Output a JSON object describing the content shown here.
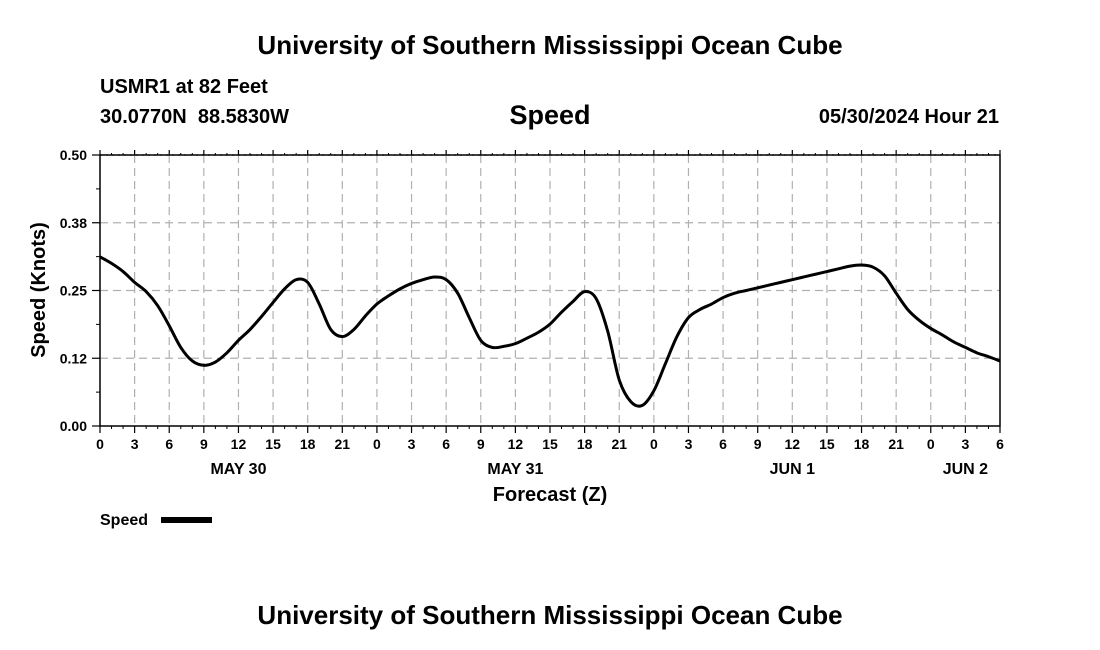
{
  "page": {
    "top_title": "University of Southern Mississippi Ocean Cube",
    "bottom_title": "University of Southern Mississippi Ocean Cube",
    "station_line": "USMR1 at 82 Feet",
    "coords_line": "30.0770N  88.5830W",
    "datetime_line": "05/30/2024 Hour 21"
  },
  "chart_data": {
    "type": "line",
    "title": "Speed",
    "xlabel": "Forecast (Z)",
    "ylabel": "Speed (Knots)",
    "ylim": [
      0,
      0.5
    ],
    "xlim": [
      0,
      78
    ],
    "y_ticks": [
      0,
      0.125,
      0.25,
      0.375,
      0.5
    ],
    "y_tick_labels": [
      "0.00",
      "0.12",
      "0.25",
      "0.38",
      "0.50"
    ],
    "x_ticks": [
      0,
      3,
      6,
      9,
      12,
      15,
      18,
      21,
      24,
      27,
      30,
      33,
      36,
      39,
      42,
      45,
      48,
      51,
      54,
      57,
      60,
      63,
      66,
      69,
      72,
      75,
      78
    ],
    "x_tick_labels": [
      "0",
      "3",
      "6",
      "9",
      "12",
      "15",
      "18",
      "21",
      "0",
      "3",
      "6",
      "9",
      "12",
      "15",
      "18",
      "21",
      "0",
      "3",
      "6",
      "9",
      "12",
      "15",
      "18",
      "21",
      "0",
      "3",
      "6"
    ],
    "date_labels": [
      {
        "label": "MAY 30",
        "x": 12
      },
      {
        "label": "MAY 31",
        "x": 36
      },
      {
        "label": "JUN 1",
        "x": 60
      },
      {
        "label": "JUN 2",
        "x": 75
      }
    ],
    "grid": true,
    "legend": "bottom-left",
    "series": [
      {
        "name": "Speed",
        "x": [
          0,
          1,
          2,
          3,
          4,
          5,
          6,
          7,
          8,
          9,
          10,
          11,
          12,
          13,
          14,
          15,
          16,
          17,
          18,
          19,
          20,
          21,
          22,
          23,
          24,
          25,
          26,
          27,
          28,
          29,
          30,
          31,
          32,
          33,
          34,
          35,
          36,
          37,
          38,
          39,
          40,
          41,
          42,
          43,
          44,
          45,
          46,
          47,
          48,
          49,
          50,
          51,
          52,
          53,
          54,
          55,
          56,
          57,
          58,
          59,
          60,
          61,
          62,
          63,
          64,
          65,
          66,
          67,
          68,
          69,
          70,
          71,
          72,
          73,
          74,
          75,
          76,
          77,
          78
        ],
        "values": [
          0.312,
          0.3,
          0.285,
          0.265,
          0.248,
          0.222,
          0.185,
          0.145,
          0.12,
          0.112,
          0.118,
          0.135,
          0.158,
          0.178,
          0.202,
          0.228,
          0.253,
          0.27,
          0.265,
          0.225,
          0.178,
          0.165,
          0.178,
          0.203,
          0.225,
          0.24,
          0.253,
          0.263,
          0.27,
          0.275,
          0.27,
          0.245,
          0.2,
          0.158,
          0.145,
          0.147,
          0.152,
          0.162,
          0.173,
          0.188,
          0.21,
          0.23,
          0.248,
          0.235,
          0.175,
          0.085,
          0.045,
          0.038,
          0.065,
          0.115,
          0.165,
          0.2,
          0.215,
          0.225,
          0.237,
          0.245,
          0.25,
          0.255,
          0.26,
          0.265,
          0.27,
          0.275,
          0.28,
          0.285,
          0.29,
          0.295,
          0.297,
          0.293,
          0.277,
          0.245,
          0.215,
          0.195,
          0.18,
          0.168,
          0.155,
          0.145,
          0.135,
          0.128,
          0.12
        ]
      }
    ]
  }
}
